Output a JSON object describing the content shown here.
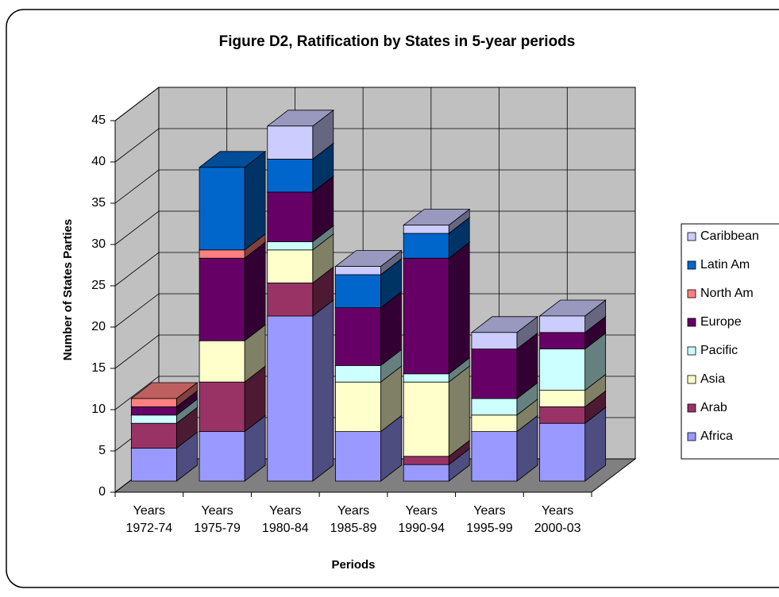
{
  "chart_data": {
    "type": "bar3d_stacked",
    "title": "Figure D2, Ratification by States in 5-year periods",
    "x_label": "Periods",
    "y_label": "Number of States Parties",
    "categories": [
      "Years 1972-74",
      "Years 1975-79",
      "Years 1980-84",
      "Years 1985-89",
      "Years 1990-94",
      "Years 1995-99",
      "Years 2000-03"
    ],
    "series": [
      {
        "name": "Africa",
        "color": "#9999ff",
        "values": [
          4,
          6,
          20,
          6,
          2,
          6,
          7
        ]
      },
      {
        "name": "Arab",
        "color": "#993366",
        "values": [
          3,
          6,
          4,
          0,
          1,
          0,
          2
        ]
      },
      {
        "name": "Asia",
        "color": "#ffffcc",
        "values": [
          0,
          5,
          4,
          6,
          9,
          2,
          2
        ]
      },
      {
        "name": "Pacific",
        "color": "#ccffff",
        "values": [
          1,
          0,
          1,
          2,
          1,
          2,
          5
        ]
      },
      {
        "name": "Europe",
        "color": "#660066",
        "values": [
          1,
          10,
          6,
          7,
          14,
          6,
          2
        ]
      },
      {
        "name": "North Am",
        "color": "#ff8080",
        "values": [
          1,
          1,
          0,
          0,
          0,
          0,
          0
        ]
      },
      {
        "name": "Latin Am",
        "color": "#0066cc",
        "values": [
          0,
          10,
          4,
          4,
          3,
          0,
          0
        ]
      },
      {
        "name": "Caribbean",
        "color": "#ccccff",
        "values": [
          0,
          0,
          4,
          1,
          1,
          2,
          2
        ]
      }
    ],
    "ylim": [
      0,
      45
    ],
    "yticks": [
      0,
      5,
      10,
      15,
      20,
      25,
      30,
      35,
      40,
      45
    ],
    "grid": true,
    "legend": "right"
  }
}
